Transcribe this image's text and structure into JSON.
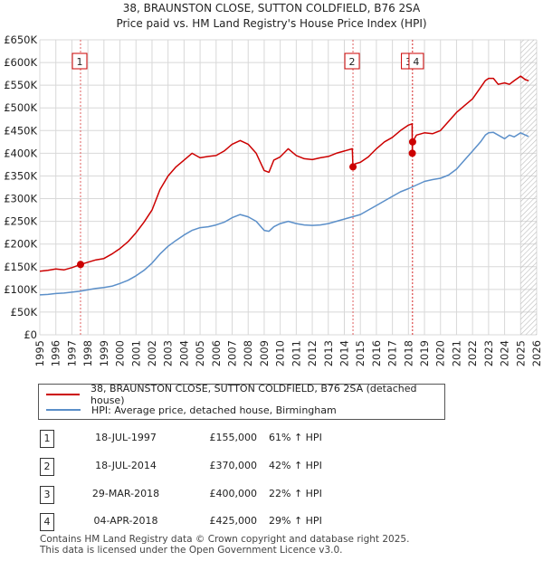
{
  "chart_data": {
    "type": "line",
    "title": "38, BRAUNSTON CLOSE, SUTTON COLDFIELD, B76 2SA",
    "subtitle": "Price paid vs. HM Land Registry's House Price Index (HPI)",
    "xlim": [
      1995,
      2026
    ],
    "ylim": [
      0,
      650000
    ],
    "yticks": [
      0,
      50000,
      100000,
      150000,
      200000,
      250000,
      300000,
      350000,
      400000,
      450000,
      500000,
      550000,
      600000,
      650000
    ],
    "ytick_labels": [
      "£0",
      "£50K",
      "£100K",
      "£150K",
      "£200K",
      "£250K",
      "£300K",
      "£350K",
      "£400K",
      "£450K",
      "£500K",
      "£550K",
      "£600K",
      "£650K"
    ],
    "xticks": [
      1995,
      1996,
      1997,
      1998,
      1999,
      2000,
      2001,
      2002,
      2003,
      2004,
      2005,
      2006,
      2007,
      2008,
      2009,
      2010,
      2011,
      2012,
      2013,
      2014,
      2015,
      2016,
      2017,
      2018,
      2019,
      2020,
      2021,
      2022,
      2023,
      2024,
      2025,
      2026
    ],
    "xtick_labels": [
      "1995",
      "1996",
      "1997",
      "1998",
      "1999",
      "2000",
      "2001",
      "2002",
      "2003",
      "2004",
      "2005",
      "2006",
      "2007",
      "2008",
      "2009",
      "2010",
      "2011",
      "2012",
      "2013",
      "2014",
      "2015",
      "2016",
      "2017",
      "2018",
      "2019",
      "2020",
      "2021",
      "2022",
      "2023",
      "2024",
      "2025",
      "2026"
    ],
    "grid": true,
    "series": [
      {
        "name": "38, BRAUNSTON CLOSE, SUTTON COLDFIELD, B76 2SA (detached house)",
        "color": "#cc0000",
        "x": [
          1995.0,
          1995.5,
          1996.0,
          1996.5,
          1997.0,
          1997.54,
          1998.0,
          1998.5,
          1999.0,
          1999.5,
          2000.0,
          2000.5,
          2001.0,
          2001.5,
          2002.0,
          2002.5,
          2003.0,
          2003.5,
          2004.0,
          2004.5,
          2005.0,
          2005.5,
          2006.0,
          2006.5,
          2007.0,
          2007.5,
          2008.0,
          2008.5,
          2009.0,
          2009.3,
          2009.6,
          2010.0,
          2010.5,
          2011.0,
          2011.5,
          2012.0,
          2012.5,
          2013.0,
          2013.5,
          2014.0,
          2014.5,
          2014.54,
          2014.7,
          2015.0,
          2015.5,
          2016.0,
          2016.5,
          2017.0,
          2017.5,
          2018.0,
          2018.23,
          2018.24,
          2018.26,
          2018.5,
          2019.0,
          2019.5,
          2020.0,
          2020.5,
          2021.0,
          2021.5,
          2022.0,
          2022.5,
          2022.8,
          2023.0,
          2023.3,
          2023.6,
          2024.0,
          2024.3,
          2024.6,
          2025.0,
          2025.3,
          2025.5
        ],
        "values": [
          140000,
          142000,
          145000,
          143000,
          148000,
          155000,
          160000,
          165000,
          168000,
          178000,
          190000,
          205000,
          225000,
          248000,
          275000,
          320000,
          350000,
          370000,
          385000,
          400000,
          390000,
          393000,
          395000,
          405000,
          420000,
          428000,
          420000,
          400000,
          362000,
          358000,
          385000,
          392000,
          410000,
          395000,
          388000,
          386000,
          390000,
          393000,
          400000,
          405000,
          410000,
          370000,
          377000,
          380000,
          392000,
          410000,
          425000,
          435000,
          450000,
          462000,
          465000,
          400000,
          425000,
          440000,
          445000,
          443000,
          450000,
          470000,
          490000,
          505000,
          520000,
          545000,
          560000,
          565000,
          565000,
          552000,
          555000,
          552000,
          560000,
          570000,
          562000,
          560000
        ]
      },
      {
        "name": "HPI: Average price, detached house, Birmingham",
        "color": "#5b8fc9",
        "x": [
          1995.0,
          1995.5,
          1996.0,
          1996.5,
          1997.0,
          1997.5,
          1998.0,
          1998.5,
          1999.0,
          1999.5,
          2000.0,
          2000.5,
          2001.0,
          2001.5,
          2002.0,
          2002.5,
          2003.0,
          2003.5,
          2004.0,
          2004.5,
          2005.0,
          2005.5,
          2006.0,
          2006.5,
          2007.0,
          2007.5,
          2008.0,
          2008.5,
          2009.0,
          2009.3,
          2009.6,
          2010.0,
          2010.5,
          2011.0,
          2011.5,
          2012.0,
          2012.5,
          2013.0,
          2013.5,
          2014.0,
          2014.5,
          2015.0,
          2015.5,
          2016.0,
          2016.5,
          2017.0,
          2017.5,
          2018.0,
          2018.5,
          2019.0,
          2019.5,
          2020.0,
          2020.5,
          2021.0,
          2021.5,
          2022.0,
          2022.5,
          2022.8,
          2023.0,
          2023.3,
          2023.6,
          2024.0,
          2024.3,
          2024.6,
          2025.0,
          2025.3,
          2025.5
        ],
        "values": [
          88000,
          89000,
          91000,
          92000,
          94000,
          96000,
          99000,
          102000,
          104000,
          107000,
          113000,
          120000,
          130000,
          142000,
          158000,
          178000,
          195000,
          208000,
          220000,
          230000,
          236000,
          238000,
          242000,
          248000,
          258000,
          265000,
          260000,
          250000,
          230000,
          228000,
          238000,
          245000,
          250000,
          245000,
          242000,
          241000,
          242000,
          245000,
          250000,
          255000,
          260000,
          265000,
          275000,
          285000,
          295000,
          305000,
          315000,
          322000,
          330000,
          338000,
          342000,
          345000,
          352000,
          365000,
          385000,
          405000,
          425000,
          440000,
          445000,
          446000,
          440000,
          432000,
          440000,
          436000,
          445000,
          440000,
          437000
        ]
      }
    ],
    "markers": [
      {
        "label": "1",
        "x": 1997.54,
        "y": 155000
      },
      {
        "label": "2",
        "x": 2014.54,
        "y": 370000
      },
      {
        "label": "3",
        "x": 2018.24,
        "y": 400000
      },
      {
        "label": "4",
        "x": 2018.26,
        "y": 425000
      }
    ],
    "hatch_from": 2025.0
  },
  "legend": {
    "property_label": "38, BRAUNSTON CLOSE, SUTTON COLDFIELD, B76 2SA (detached house)",
    "hpi_label": "HPI: Average price, detached house, Birmingham"
  },
  "transactions": [
    {
      "num": "1",
      "date": "18-JUL-1997",
      "price": "£155,000",
      "hpi": "61% ↑ HPI"
    },
    {
      "num": "2",
      "date": "18-JUL-2014",
      "price": "£370,000",
      "hpi": "42% ↑ HPI"
    },
    {
      "num": "3",
      "date": "29-MAR-2018",
      "price": "£400,000",
      "hpi": "22% ↑ HPI"
    },
    {
      "num": "4",
      "date": "04-APR-2018",
      "price": "£425,000",
      "hpi": "29% ↑ HPI"
    }
  ],
  "footer": {
    "line1": "Contains HM Land Registry data © Crown copyright and database right 2025.",
    "line2": "This data is licensed under the Open Government Licence v3.0."
  }
}
